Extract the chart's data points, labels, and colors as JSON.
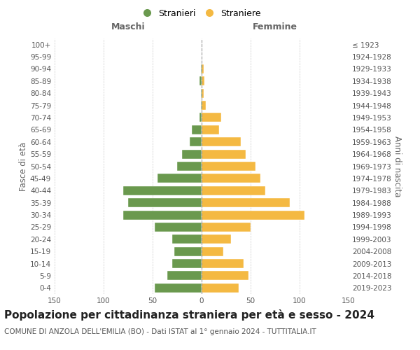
{
  "age_groups": [
    "0-4",
    "5-9",
    "10-14",
    "15-19",
    "20-24",
    "25-29",
    "30-34",
    "35-39",
    "40-44",
    "45-49",
    "50-54",
    "55-59",
    "60-64",
    "65-69",
    "70-74",
    "75-79",
    "80-84",
    "85-89",
    "90-94",
    "95-99",
    "100+"
  ],
  "birth_years": [
    "2019-2023",
    "2014-2018",
    "2009-2013",
    "2004-2008",
    "1999-2003",
    "1994-1998",
    "1989-1993",
    "1984-1988",
    "1979-1983",
    "1974-1978",
    "1969-1973",
    "1964-1968",
    "1959-1963",
    "1954-1958",
    "1949-1953",
    "1944-1948",
    "1939-1943",
    "1934-1938",
    "1929-1933",
    "1924-1928",
    "≤ 1923"
  ],
  "maschi": [
    48,
    35,
    30,
    28,
    30,
    48,
    80,
    75,
    80,
    45,
    25,
    20,
    12,
    10,
    2,
    1,
    1,
    2,
    1,
    0,
    0
  ],
  "femmine": [
    38,
    48,
    43,
    22,
    30,
    50,
    105,
    90,
    65,
    60,
    55,
    45,
    40,
    18,
    20,
    4,
    2,
    3,
    2,
    0,
    0
  ],
  "maschi_color": "#6a994e",
  "femmine_color": "#f4b942",
  "background_color": "#ffffff",
  "grid_color": "#cccccc",
  "title": "Popolazione per cittadinanza straniera per età e sesso - 2024",
  "subtitle": "COMUNE DI ANZOLA DELL'EMILIA (BO) - Dati ISTAT al 1° gennaio 2024 - TUTTITALIA.IT",
  "xlabel_left": "Maschi",
  "xlabel_right": "Femmine",
  "ylabel_left": "Fasce di età",
  "ylabel_right": "Anni di nascita",
  "legend_stranieri": "Stranieri",
  "legend_straniere": "Straniere",
  "xlim": 150,
  "title_fontsize": 11,
  "subtitle_fontsize": 7.5,
  "axis_label_fontsize": 8.5,
  "tick_fontsize": 7.5
}
